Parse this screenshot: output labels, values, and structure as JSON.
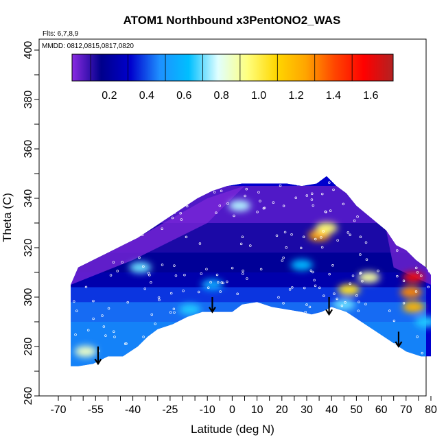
{
  "chart_data": {
    "type": "heatmap",
    "title": "ATOM1 Northbound x3PentONO2_WAS",
    "flights_label": "Flts: 6,7,8,9",
    "dates_label": "MMDD: 0812,0815,0817,0820",
    "xlabel": "Latitude (deg N)",
    "ylabel": "Theta (C)",
    "xlim": [
      -72,
      82
    ],
    "ylim": [
      260,
      405
    ],
    "x_ticks": [
      {
        "value": -70,
        "label": "-70"
      },
      {
        "value": -55,
        "label": "-55"
      },
      {
        "value": -40,
        "label": "-40"
      },
      {
        "value": -25,
        "label": "-25"
      },
      {
        "value": -10,
        "label": "-10"
      },
      {
        "value": 0,
        "label": "0"
      },
      {
        "value": 10,
        "label": "10"
      },
      {
        "value": 20,
        "label": "20"
      },
      {
        "value": 30,
        "label": "30"
      },
      {
        "value": 40,
        "label": "40"
      },
      {
        "value": 50,
        "label": "50"
      },
      {
        "value": 60,
        "label": "60"
      },
      {
        "value": 70,
        "label": "70"
      },
      {
        "value": 80,
        "label": "80"
      }
    ],
    "y_ticks": [
      {
        "value": 260,
        "label": "260"
      },
      {
        "value": 280,
        "label": "280"
      },
      {
        "value": 300,
        "label": "300"
      },
      {
        "value": 320,
        "label": "320"
      },
      {
        "value": 340,
        "label": "340"
      },
      {
        "value": 360,
        "label": "360"
      },
      {
        "value": 380,
        "label": "380"
      },
      {
        "value": 400,
        "label": "400"
      }
    ],
    "colorbar": {
      "range": [
        0.0,
        1.72
      ],
      "ticks": [
        {
          "value": 0.2,
          "label": "0.2"
        },
        {
          "value": 0.4,
          "label": "0.4"
        },
        {
          "value": 0.6,
          "label": "0.6"
        },
        {
          "value": 0.8,
          "label": "0.8"
        },
        {
          "value": 1.0,
          "label": "1.0"
        },
        {
          "value": 1.2,
          "label": "1.2"
        },
        {
          "value": 1.4,
          "label": "1.4"
        },
        {
          "value": 1.6,
          "label": "1.6"
        }
      ],
      "colors": [
        "#8a2be2",
        "#00008b",
        "#0000cd",
        "#1e90ff",
        "#00bfff",
        "#e0ffff",
        "#ffff7f",
        "#ffd700",
        "#ffa500",
        "#ff4500",
        "#ff0000",
        "#b22222"
      ]
    },
    "field_outline": {
      "top": [
        [
          -65,
          305
        ],
        [
          -62,
          312
        ],
        [
          -56,
          315
        ],
        [
          -50,
          318
        ],
        [
          -44,
          321
        ],
        [
          -38,
          324
        ],
        [
          -32,
          328
        ],
        [
          -26,
          332
        ],
        [
          -20,
          336
        ],
        [
          -14,
          340
        ],
        [
          -8,
          343
        ],
        [
          -2,
          345
        ],
        [
          4,
          346
        ],
        [
          10,
          346
        ],
        [
          16,
          346
        ],
        [
          22,
          346
        ],
        [
          28,
          345
        ],
        [
          34,
          346
        ],
        [
          38,
          349
        ],
        [
          42,
          345
        ],
        [
          46,
          342
        ],
        [
          50,
          337
        ],
        [
          56,
          332
        ],
        [
          62,
          327
        ],
        [
          66,
          321
        ],
        [
          70,
          319
        ],
        [
          74,
          315
        ],
        [
          78,
          312
        ],
        [
          80,
          309
        ],
        [
          80,
          300
        ],
        [
          80,
          290
        ],
        [
          80,
          276
        ]
      ],
      "bottom": [
        [
          80,
          276
        ],
        [
          76,
          276
        ],
        [
          70,
          278
        ],
        [
          64,
          282
        ],
        [
          58,
          286
        ],
        [
          52,
          290
        ],
        [
          46,
          294
        ],
        [
          40,
          296
        ],
        [
          36,
          294
        ],
        [
          32,
          293
        ],
        [
          28,
          294
        ],
        [
          22,
          295
        ],
        [
          16,
          296
        ],
        [
          10,
          298
        ],
        [
          4,
          297
        ],
        [
          0,
          294
        ],
        [
          -6,
          294
        ],
        [
          -12,
          294
        ],
        [
          -18,
          292
        ],
        [
          -24,
          289
        ],
        [
          -30,
          287
        ],
        [
          -34,
          284
        ],
        [
          -38,
          280
        ],
        [
          -44,
          276
        ],
        [
          -50,
          276
        ],
        [
          -56,
          273
        ],
        [
          -62,
          272
        ],
        [
          -65,
          272
        ]
      ]
    },
    "hotspots": [
      {
        "lat": 35,
        "theta": 325,
        "value": 1.25
      },
      {
        "lat": 38,
        "theta": 328,
        "value": 0.95
      },
      {
        "lat": 47,
        "theta": 303,
        "value": 1.05
      },
      {
        "lat": 55,
        "theta": 308,
        "value": 0.9
      },
      {
        "lat": 73,
        "theta": 308,
        "value": 1.6
      },
      {
        "lat": 73,
        "theta": 296,
        "value": 1.2
      },
      {
        "lat": 72,
        "theta": 302,
        "value": 1.3
      },
      {
        "lat": -59,
        "theta": 278,
        "value": 0.85
      },
      {
        "lat": -37,
        "theta": 312,
        "value": 0.7
      },
      {
        "lat": -17,
        "theta": 295,
        "value": 0.65
      },
      {
        "lat": -8,
        "theta": 305,
        "value": 0.55
      },
      {
        "lat": 3,
        "theta": 337,
        "value": 0.75
      },
      {
        "lat": 28,
        "theta": 313,
        "value": 0.6
      },
      {
        "lat": 45,
        "theta": 297,
        "value": 0.7
      },
      {
        "lat": 78,
        "theta": 290,
        "value": 0.65
      }
    ],
    "arrows": [
      {
        "lat": -54,
        "theta": 280,
        "theta_end": 273
      },
      {
        "lat": -8,
        "theta": 300,
        "theta_end": 294
      },
      {
        "lat": 39,
        "theta": 300,
        "theta_end": 293
      },
      {
        "lat": 67,
        "theta": 286,
        "theta_end": 280
      }
    ]
  }
}
